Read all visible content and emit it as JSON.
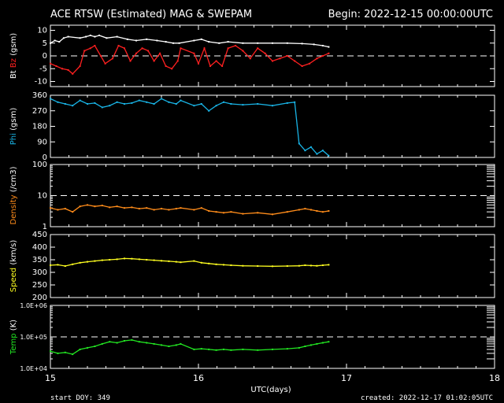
{
  "header": {
    "title": "ACE RTSW (Estimated) MAG & SWEPAM",
    "begin": "Begin: 2022-12-15 00:00:00UTC"
  },
  "footer": {
    "start_doy": "start DOY: 349",
    "created": "created: 2022-12-17 01:02:05UTC"
  },
  "colors": {
    "bt": "#ffffff",
    "bz": "#ff2020",
    "phi": "#19b4e6",
    "density": "#ff8c1a",
    "speed": "#ffff20",
    "temp": "#22e622",
    "axis": "#ffffff"
  },
  "chart_data": {
    "type": "scatter",
    "x_range": [
      15,
      18
    ],
    "x_label": "UTC(days)",
    "x_ticks": [
      "15",
      "16",
      "17",
      "18"
    ],
    "panels": [
      {
        "id": "mag",
        "ylabel_parts": [
          {
            "text": "Bt",
            "color": "bt"
          },
          {
            "text": "Bz",
            "color": "bz"
          },
          {
            "text": "(gsm)",
            "color": "axis"
          }
        ],
        "ylim": [
          -12,
          12
        ],
        "yticks": [
          -10,
          -5,
          0,
          5,
          10
        ],
        "ytick_labels": [
          "-10",
          "-5",
          "0",
          "5",
          "10"
        ],
        "dashed_at": [
          0
        ],
        "series": [
          {
            "color": "bt",
            "x": [
              15.0,
              15.03,
              15.06,
              15.09,
              15.12,
              15.2,
              15.24,
              15.27,
              15.3,
              15.33,
              15.38,
              15.45,
              15.52,
              15.58,
              15.65,
              15.72,
              15.78,
              15.83,
              15.87,
              15.97,
              16.02,
              16.07,
              16.14,
              16.2,
              16.3,
              16.4,
              16.5,
              16.6,
              16.7,
              16.78,
              16.84,
              16.88
            ],
            "y": [
              5,
              6,
              5.5,
              7,
              7.5,
              7,
              7.5,
              8,
              7.5,
              8,
              7,
              7.5,
              6.5,
              6,
              6.5,
              6,
              5.5,
              5,
              5,
              6,
              6.5,
              5.5,
              5,
              5.5,
              5,
              5,
              5,
              5,
              4.8,
              4.5,
              4,
              3.5
            ]
          },
          {
            "color": "bz",
            "x": [
              15.0,
              15.04,
              15.08,
              15.12,
              15.15,
              15.2,
              15.23,
              15.27,
              15.3,
              15.34,
              15.37,
              15.42,
              15.46,
              15.5,
              15.54,
              15.58,
              15.62,
              15.66,
              15.7,
              15.74,
              15.78,
              15.82,
              15.86,
              15.88,
              15.97,
              16.0,
              16.04,
              16.08,
              16.12,
              16.16,
              16.2,
              16.25,
              16.3,
              16.35,
              16.4,
              16.45,
              16.5,
              16.55,
              16.6,
              16.65,
              16.7,
              16.75,
              16.8,
              16.84,
              16.88
            ],
            "y": [
              -3,
              -4,
              -5,
              -5.5,
              -7,
              -4,
              2,
              3,
              4,
              0,
              -3,
              -1,
              4,
              3,
              -2,
              1,
              3,
              2,
              -2,
              1,
              -4,
              -5,
              -2,
              3,
              1,
              -3,
              3,
              -4,
              -2,
              -4,
              3,
              4,
              2,
              -1,
              3,
              1,
              -2,
              -1,
              0,
              -2,
              -4,
              -3,
              -1,
              0,
              1
            ]
          }
        ]
      },
      {
        "id": "phi",
        "ylabel_parts": [
          {
            "text": "Phi",
            "color": "phi"
          },
          {
            "text": "(gsm)",
            "color": "axis"
          }
        ],
        "ylim": [
          0,
          360
        ],
        "yticks": [
          0,
          90,
          180,
          270,
          360
        ],
        "ytick_labels": [
          "0",
          "90",
          "180",
          "270",
          "360"
        ],
        "dashed_at": [],
        "series": [
          {
            "color": "phi",
            "x": [
              15.0,
              15.05,
              15.1,
              15.15,
              15.2,
              15.25,
              15.3,
              15.35,
              15.4,
              15.45,
              15.5,
              15.55,
              15.6,
              15.65,
              15.7,
              15.75,
              15.8,
              15.85,
              15.88,
              15.97,
              16.02,
              16.07,
              16.12,
              16.17,
              16.22,
              16.3,
              16.4,
              16.5,
              16.6,
              16.65,
              16.68,
              16.72,
              16.76,
              16.8,
              16.84,
              16.88
            ],
            "y": [
              340,
              320,
              310,
              300,
              330,
              310,
              315,
              290,
              300,
              320,
              310,
              315,
              330,
              320,
              310,
              340,
              320,
              310,
              330,
              300,
              310,
              270,
              300,
              320,
              310,
              305,
              310,
              300,
              315,
              320,
              80,
              40,
              60,
              20,
              40,
              10
            ]
          }
        ]
      },
      {
        "id": "density",
        "ylabel_parts": [
          {
            "text": "Density",
            "color": "density"
          },
          {
            "text": "(/cm3)",
            "color": "axis"
          }
        ],
        "log_scale": true,
        "ylim": [
          1,
          100
        ],
        "yticks": [
          1,
          10,
          100
        ],
        "ytick_labels": [
          "1",
          "10",
          "100"
        ],
        "dashed_at": [
          10
        ],
        "series": [
          {
            "color": "density",
            "x": [
              15.0,
              15.05,
              15.1,
              15.15,
              15.2,
              15.25,
              15.3,
              15.35,
              15.4,
              15.45,
              15.5,
              15.55,
              15.6,
              15.65,
              15.7,
              15.75,
              15.8,
              15.85,
              15.88,
              15.97,
              16.02,
              16.07,
              16.12,
              16.17,
              16.22,
              16.3,
              16.4,
              16.5,
              16.6,
              16.68,
              16.72,
              16.76,
              16.8,
              16.84,
              16.88
            ],
            "y": [
              4,
              3.5,
              3.8,
              3,
              4.5,
              5,
              4.5,
              4.8,
              4.2,
              4.5,
              4,
              4.2,
              3.8,
              4,
              3.5,
              3.8,
              3.5,
              3.8,
              4,
              3.5,
              4,
              3.2,
              3,
              2.8,
              3,
              2.6,
              2.8,
              2.5,
              3,
              3.5,
              3.8,
              3.5,
              3.2,
              3,
              3.2
            ]
          }
        ]
      },
      {
        "id": "speed",
        "ylabel_parts": [
          {
            "text": "Speed",
            "color": "speed"
          },
          {
            "text": "(km/s)",
            "color": "axis"
          }
        ],
        "ylim": [
          200,
          450
        ],
        "yticks": [
          200,
          250,
          300,
          350,
          400,
          450
        ],
        "ytick_labels": [
          "200",
          "250",
          "300",
          "350",
          "400",
          "450"
        ],
        "dashed_at": [],
        "series": [
          {
            "color": "speed",
            "x": [
              15.0,
              15.05,
              15.1,
              15.15,
              15.2,
              15.25,
              15.3,
              15.35,
              15.4,
              15.45,
              15.5,
              15.55,
              15.6,
              15.65,
              15.7,
              15.75,
              15.8,
              15.85,
              15.88,
              15.97,
              16.02,
              16.07,
              16.12,
              16.17,
              16.22,
              16.3,
              16.4,
              16.5,
              16.6,
              16.68,
              16.72,
              16.76,
              16.8,
              16.84,
              16.88
            ],
            "y": [
              328,
              330,
              325,
              332,
              338,
              342,
              345,
              348,
              350,
              352,
              355,
              354,
              352,
              350,
              348,
              346,
              344,
              342,
              340,
              345,
              338,
              335,
              332,
              330,
              328,
              326,
              325,
              324,
              325,
              326,
              328,
              327,
              326,
              328,
              330
            ]
          }
        ]
      },
      {
        "id": "temp",
        "ylabel_parts": [
          {
            "text": "Temp",
            "color": "temp"
          },
          {
            "text": "(K)",
            "color": "axis"
          }
        ],
        "log_scale": true,
        "ylim": [
          10000,
          1000000
        ],
        "yticks": [
          10000,
          100000,
          1000000
        ],
        "ytick_labels": [
          "1.0E+04",
          "1.0E+05",
          "1.0E+06"
        ],
        "dashed_at": [
          100000
        ],
        "series": [
          {
            "color": "temp",
            "x": [
              15.0,
              15.05,
              15.1,
              15.15,
              15.2,
              15.25,
              15.3,
              15.35,
              15.4,
              15.45,
              15.5,
              15.55,
              15.6,
              15.65,
              15.7,
              15.75,
              15.8,
              15.85,
              15.88,
              15.97,
              16.02,
              16.07,
              16.12,
              16.17,
              16.22,
              16.3,
              16.4,
              16.5,
              16.6,
              16.68,
              16.72,
              16.76,
              16.8,
              16.84,
              16.88
            ],
            "y": [
              35000,
              30000,
              32000,
              28000,
              40000,
              45000,
              50000,
              60000,
              70000,
              65000,
              75000,
              80000,
              70000,
              65000,
              60000,
              55000,
              50000,
              55000,
              60000,
              40000,
              42000,
              40000,
              38000,
              40000,
              38000,
              40000,
              38000,
              40000,
              42000,
              45000,
              50000,
              55000,
              60000,
              65000,
              70000
            ]
          }
        ]
      }
    ]
  }
}
